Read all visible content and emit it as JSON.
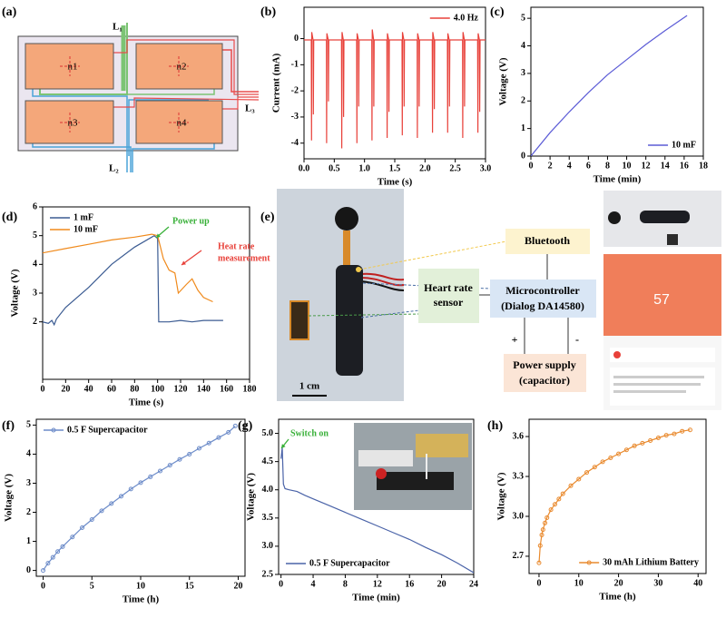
{
  "panels": [
    "(a)",
    "(b)",
    "(c)",
    "(d)",
    "(e)",
    "(f)",
    "(g)",
    "(h)"
  ],
  "diagram_a": {
    "pads": [
      "n1",
      "n2",
      "n3",
      "n4"
    ],
    "leads": [
      "L₁",
      "L₂",
      "L₃"
    ]
  },
  "diagram_e": {
    "bluetooth": "Bluetooth",
    "heart_rate": [
      "Heart rate",
      "sensor"
    ],
    "microcontroller": [
      "Microcontroller",
      "(Dialog DA14580)"
    ],
    "power_supply": [
      "Power supply",
      "(capacitor)"
    ],
    "plus": "+",
    "minus": "-",
    "scale": "1 cm",
    "heart_value": "57"
  },
  "chart_data": [
    {
      "type": "line",
      "xlabel": "Time (s)",
      "ylabel": "Current (mA)",
      "xlim": [
        0,
        3
      ],
      "ylim": [
        -4.6,
        1.2
      ],
      "xticks": [
        {
          "value": 0,
          "label": "0.0"
        },
        0.5,
        {
          "value": 1,
          "label": "1.0"
        },
        1.5,
        {
          "value": 2,
          "label": "2.0"
        },
        2.5,
        {
          "value": 3,
          "label": "3.0"
        }
      ],
      "yticks": [
        -4,
        -3,
        -2,
        -1,
        0
      ],
      "legend": "upper right",
      "series": [
        {
          "name": "4.0 Hz",
          "color": "#e8413a",
          "x": [
            0,
            0.12,
            0.124,
            0.128,
            0.15,
            0.154,
            0.16,
            0.37,
            0.374,
            0.378,
            0.4,
            0.404,
            0.41,
            0.62,
            0.624,
            0.628,
            0.65,
            0.654,
            0.66,
            0.87,
            0.874,
            0.878,
            0.9,
            0.904,
            0.91,
            1.12,
            1.124,
            1.128,
            1.15,
            1.154,
            1.16,
            1.37,
            1.374,
            1.378,
            1.4,
            1.404,
            1.41,
            1.62,
            1.624,
            1.628,
            1.65,
            1.654,
            1.66,
            1.87,
            1.874,
            1.878,
            1.9,
            1.904,
            1.91,
            2.12,
            2.124,
            2.128,
            2.15,
            2.154,
            2.16,
            2.37,
            2.374,
            2.378,
            2.4,
            2.404,
            2.41,
            2.62,
            2.624,
            2.628,
            2.65,
            2.654,
            2.66,
            2.87,
            2.874,
            2.878,
            2.9,
            2.904,
            2.91,
            3.0
          ],
          "values": [
            -0.05,
            -0.05,
            -3.9,
            0.25,
            -0.05,
            -2.9,
            -0.05,
            -0.05,
            -4.0,
            0.2,
            -0.05,
            -2.4,
            -0.05,
            -0.05,
            -4.2,
            0.25,
            -0.05,
            -3.0,
            -0.05,
            -0.05,
            -4.0,
            0.2,
            -0.05,
            -2.6,
            -0.05,
            -0.05,
            -3.9,
            0.35,
            -0.05,
            -2.6,
            -0.05,
            -0.05,
            -3.8,
            0.2,
            -0.05,
            -2.8,
            -0.05,
            -0.05,
            -3.7,
            0.25,
            -0.05,
            -2.6,
            -0.05,
            -0.05,
            -3.8,
            0.2,
            -0.05,
            -2.6,
            -0.05,
            -0.05,
            -3.6,
            0.25,
            -0.05,
            -2.7,
            -0.05,
            -0.05,
            -3.6,
            0.2,
            -0.05,
            -2.6,
            -0.05,
            -0.05,
            -3.8,
            0.25,
            -0.05,
            -2.6,
            -0.05,
            -0.05,
            -3.6,
            0.2,
            -0.05,
            -2.8,
            -0.05,
            -0.05
          ]
        }
      ]
    },
    {
      "type": "line",
      "xlabel": "Time (min)",
      "ylabel": "Voltage (V)",
      "xlim": [
        0,
        18
      ],
      "ylim": [
        0,
        5.4
      ],
      "xticks": [
        0,
        2,
        4,
        6,
        8,
        10,
        12,
        14,
        16,
        18
      ],
      "yticks": [
        0,
        1,
        2,
        3,
        4,
        5
      ],
      "legend": "lower right",
      "series": [
        {
          "name": "10 mF",
          "color": "#5b5bd6",
          "x": [
            0,
            2,
            4,
            6,
            8,
            10,
            12,
            14,
            16.3
          ],
          "values": [
            0,
            0.85,
            1.6,
            2.3,
            2.95,
            3.5,
            4.05,
            4.55,
            5.1
          ]
        }
      ]
    },
    {
      "type": "line",
      "xlabel": "Time (s)",
      "ylabel": "Voltage (V)",
      "xlim": [
        0,
        180
      ],
      "ylim": [
        0,
        6
      ],
      "xticks": [
        0,
        20,
        40,
        60,
        80,
        100,
        120,
        140,
        160,
        180
      ],
      "yticks": [
        2,
        3,
        4,
        5,
        6
      ],
      "legend": "upper left",
      "series": [
        {
          "name": "1 mF",
          "color": "#3b5b92",
          "x": [
            0,
            5,
            8,
            10,
            12,
            20,
            40,
            60,
            80,
            97,
            100,
            101,
            110,
            120,
            130,
            140,
            157
          ],
          "values": [
            2.0,
            1.95,
            2.05,
            1.9,
            2.1,
            2.5,
            3.2,
            4.0,
            4.6,
            5.0,
            4.9,
            2.0,
            2.0,
            2.05,
            2.0,
            2.05,
            2.05
          ]
        },
        {
          "name": "10 mF",
          "color": "#f08a1c",
          "x": [
            0,
            20,
            40,
            60,
            80,
            95,
            100,
            105,
            110,
            115,
            118,
            125,
            130,
            135,
            140,
            148
          ],
          "values": [
            4.4,
            4.55,
            4.7,
            4.85,
            4.95,
            5.05,
            5.0,
            4.2,
            3.8,
            3.7,
            3.0,
            3.3,
            3.5,
            3.1,
            2.85,
            2.7
          ]
        }
      ],
      "annotations": [
        {
          "lines": [
            "Power up"
          ],
          "color": "#38b038"
        },
        {
          "lines": [
            "Heat rate",
            "measurement"
          ],
          "color": "#e8413a"
        }
      ]
    },
    {
      "type": "line",
      "xlabel": "Time (h)",
      "ylabel": "Voltage (V)",
      "xlim": [
        -0.7,
        20.7
      ],
      "ylim": [
        -0.2,
        5.2
      ],
      "xticks": [
        0,
        5,
        10,
        15,
        20
      ],
      "yticks": [
        0,
        1,
        2,
        3,
        4,
        5
      ],
      "legend": "upper left",
      "series": [
        {
          "name": "0.5 F Supercapacitor",
          "color": "#6d8cc9",
          "marker": "o",
          "x": [
            0,
            0.5,
            1,
            1.5,
            2,
            3,
            4,
            5,
            6,
            7,
            8,
            9,
            10,
            11,
            12,
            13,
            14,
            15,
            16,
            17,
            18,
            19,
            19.7
          ],
          "values": [
            0,
            0.25,
            0.45,
            0.65,
            0.82,
            1.15,
            1.47,
            1.75,
            2.05,
            2.3,
            2.55,
            2.8,
            3.02,
            3.22,
            3.42,
            3.62,
            3.82,
            4.0,
            4.2,
            4.38,
            4.57,
            4.75,
            4.97
          ]
        }
      ]
    },
    {
      "type": "line",
      "xlabel": "Time (min)",
      "ylabel": "Voltage (V)",
      "xlim": [
        -0.3,
        24
      ],
      "ylim": [
        2.5,
        5.25
      ],
      "xticks": [
        0,
        4,
        8,
        12,
        16,
        20,
        24
      ],
      "yticks": [
        2.5,
        {
          "value": 3,
          "label": "3.0"
        },
        3.5,
        {
          "value": 4,
          "label": "4.0"
        },
        4.5,
        {
          "value": 5,
          "label": "5.0"
        }
      ],
      "legend": "lower left",
      "series": [
        {
          "name": "0.5 F Supercapacitor",
          "color": "#4a63a8",
          "x": [
            0,
            0.15,
            0.3,
            0.5,
            1,
            2,
            3,
            4,
            6,
            8,
            10,
            12,
            14,
            16,
            18,
            20,
            22,
            24
          ],
          "values": [
            4.55,
            4.75,
            4.1,
            4.02,
            4.0,
            3.97,
            3.9,
            3.84,
            3.72,
            3.6,
            3.48,
            3.36,
            3.24,
            3.12,
            2.98,
            2.85,
            2.7,
            2.53
          ]
        }
      ],
      "annotations": [
        {
          "lines": [
            "Switch on"
          ],
          "color": "#38b038"
        }
      ]
    },
    {
      "type": "line",
      "xlabel": "Time (h)",
      "ylabel": "Voltage (V)",
      "xlim": [
        -2.5,
        42
      ],
      "ylim": [
        2.57,
        3.73
      ],
      "xticks": [
        0,
        10,
        20,
        30,
        40
      ],
      "yticks": [
        2.7,
        {
          "value": 3,
          "label": "3.0"
        },
        3.3,
        3.6
      ],
      "legend": "lower right",
      "series": [
        {
          "name": "30 mAh Lithium Battery",
          "color": "#e98a2e",
          "marker": "o",
          "x": [
            0,
            0.3,
            0.7,
            1,
            1.5,
            2,
            3,
            4,
            5,
            6,
            8,
            10,
            12,
            14,
            16,
            18,
            20,
            22,
            24,
            26,
            28,
            30,
            32,
            34,
            36,
            38
          ],
          "values": [
            2.65,
            2.78,
            2.86,
            2.9,
            2.95,
            2.99,
            3.05,
            3.09,
            3.13,
            3.17,
            3.23,
            3.28,
            3.33,
            3.37,
            3.41,
            3.44,
            3.47,
            3.5,
            3.53,
            3.55,
            3.57,
            3.59,
            3.61,
            3.62,
            3.64,
            3.65
          ]
        }
      ]
    }
  ]
}
